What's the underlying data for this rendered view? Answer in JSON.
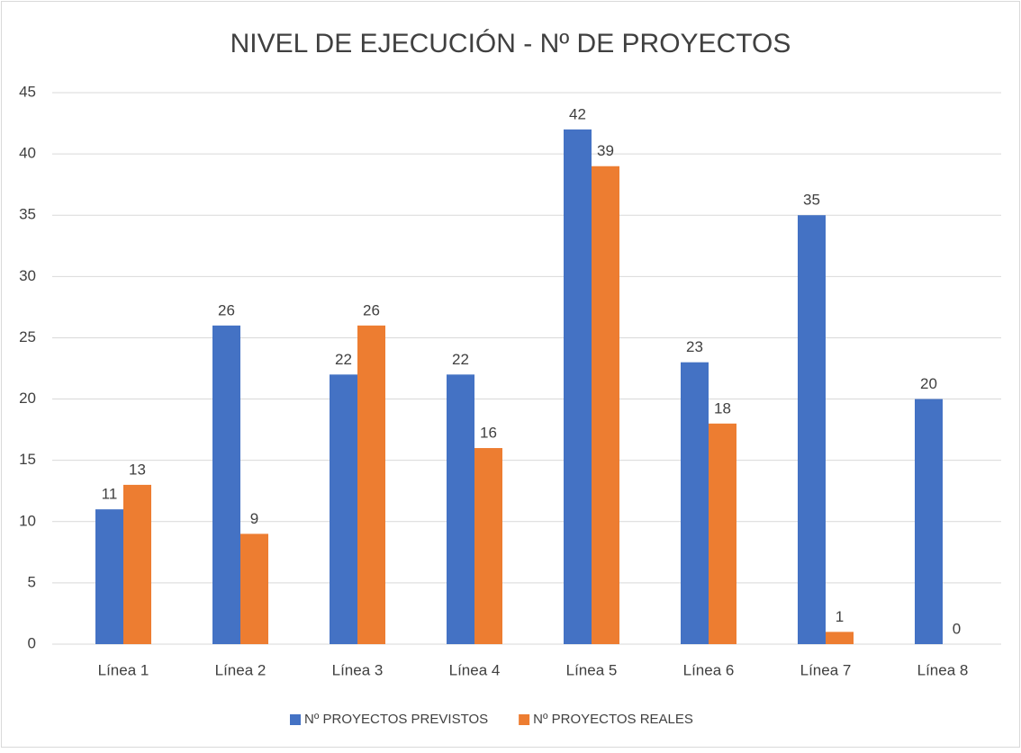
{
  "chart_data": {
    "type": "bar",
    "title": "NIVEL DE EJECUCIÓN - Nº DE PROYECTOS",
    "categories": [
      "Línea 1",
      "Línea 2",
      "Línea 3",
      "Línea 4",
      "Línea 5",
      "Línea 6",
      "Línea 7",
      "Línea 8"
    ],
    "series": [
      {
        "name": "Nº PROYECTOS PREVISTOS",
        "color": "#4472c4",
        "values": [
          11,
          26,
          22,
          22,
          42,
          23,
          35,
          20
        ]
      },
      {
        "name": "Nº PROYECTOS REALES",
        "color": "#ed7d31",
        "values": [
          13,
          9,
          26,
          16,
          39,
          18,
          1,
          0
        ]
      }
    ],
    "ylim": [
      0,
      45
    ],
    "yticks": [
      0,
      5,
      10,
      15,
      20,
      25,
      30,
      35,
      40,
      45
    ],
    "grid": true,
    "legend": "bottom"
  }
}
